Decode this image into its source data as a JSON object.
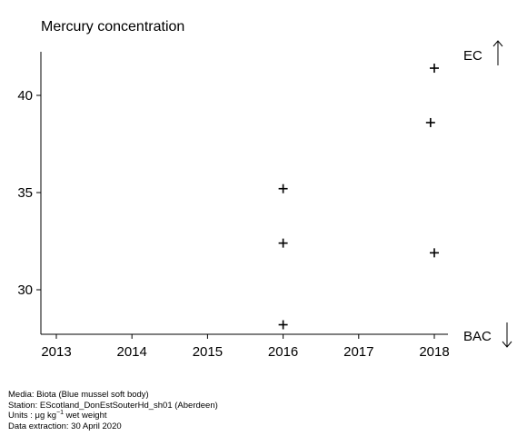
{
  "chart_data": {
    "type": "scatter",
    "title": "Mercury concentration",
    "xlabel": "",
    "ylabel": "",
    "xlim": [
      2012.8,
      2018.2
    ],
    "ylim": [
      27.8,
      42.2
    ],
    "x_ticks": [
      2013,
      2014,
      2015,
      2016,
      2017,
      2018
    ],
    "y_ticks": [
      30,
      35,
      40
    ],
    "marker": "plus",
    "grid": false,
    "legend": "none",
    "points": [
      {
        "x": 2016.0,
        "y": 35.2
      },
      {
        "x": 2016.0,
        "y": 32.4
      },
      {
        "x": 2016.0,
        "y": 28.2
      },
      {
        "x": 2018.0,
        "y": 41.4
      },
      {
        "x": 2017.95,
        "y": 38.6
      },
      {
        "x": 2018.0,
        "y": 31.9
      }
    ],
    "reference_lines": [
      {
        "label": "EC",
        "direction": "up"
      },
      {
        "label": "BAC",
        "direction": "down"
      }
    ]
  },
  "footer": {
    "media": "Media: Biota (Blue mussel soft body)",
    "station": "Station: EScotland_DonEstSouterHd_sh01 (Aberdeen)",
    "units_prefix": "Units : μg kg",
    "units_sup": "−1",
    "units_suffix": " wet weight",
    "extraction": "Data extraction: 30 April 2020"
  }
}
